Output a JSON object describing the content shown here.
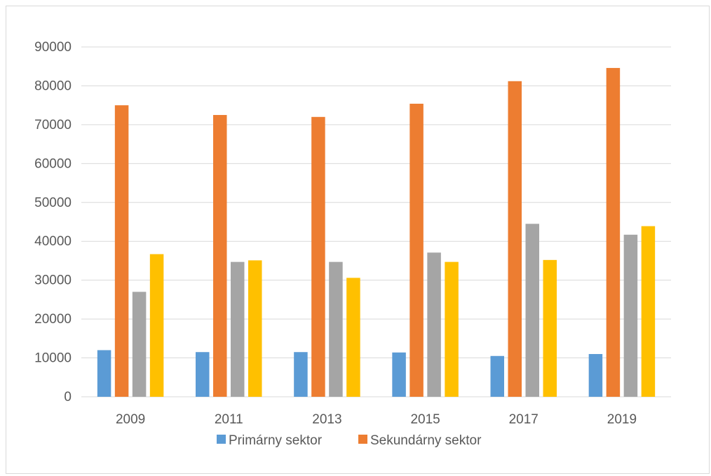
{
  "chart_data": {
    "type": "bar",
    "title": "",
    "xlabel": "",
    "ylabel": "",
    "categories": [
      "2009",
      "2011",
      "2013",
      "2015",
      "2017",
      "2019"
    ],
    "ylim": [
      0,
      90000
    ],
    "yticks": [
      0,
      10000,
      20000,
      30000,
      40000,
      50000,
      60000,
      70000,
      80000,
      90000
    ],
    "grid": true,
    "legend_position": "bottom",
    "series": [
      {
        "name": "Primárny sektor",
        "color": "#5b9bd5",
        "values": [
          12000,
          11500,
          11500,
          11400,
          10500,
          11000
        ],
        "in_legend": true
      },
      {
        "name": "Sekundárny sektor",
        "color": "#ed7d31",
        "values": [
          75000,
          72500,
          72000,
          75400,
          81200,
          84600
        ],
        "in_legend": true
      },
      {
        "name": "",
        "color": "#a5a5a5",
        "values": [
          27000,
          34700,
          34700,
          37100,
          44500,
          41700
        ],
        "in_legend": false
      },
      {
        "name": "",
        "color": "#ffc000",
        "values": [
          36700,
          35100,
          30600,
          34700,
          35200,
          43900
        ],
        "in_legend": false
      }
    ]
  }
}
